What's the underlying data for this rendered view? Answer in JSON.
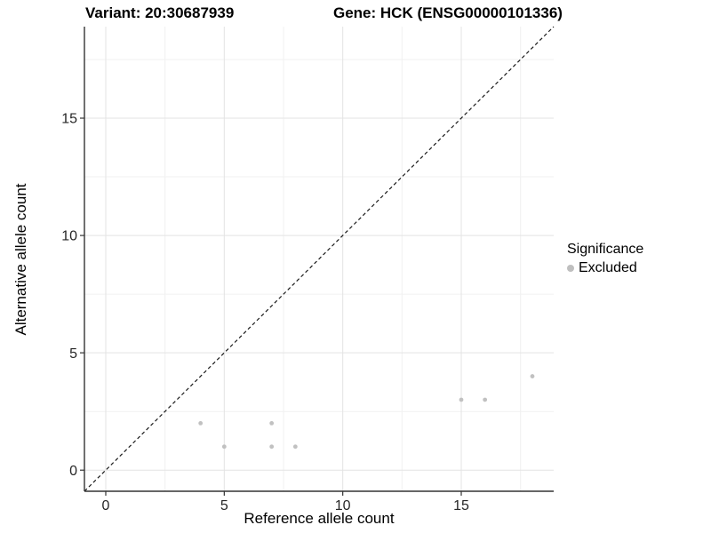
{
  "header": {
    "variant_title": "Variant: 20:30687939",
    "gene_title": "Gene: HCK (ENSG00000101336)"
  },
  "legend": {
    "title": "Significance",
    "items": [
      {
        "label": "Excluded",
        "marker_color": "#bfbfbf"
      }
    ]
  },
  "colors": {
    "point": "#c1c1c1",
    "grid_major": "#e3e3e3",
    "grid_minor": "#f1f1f1",
    "axis_line": "#333333",
    "tick_mark": "#333333",
    "tick_text": "#262626",
    "reference_line": "#1a1a1a",
    "background": "#ffffff"
  },
  "chart_data": {
    "type": "scatter",
    "title": "Variant: 20:30687939   Gene: HCK (ENSG00000101336)",
    "xlabel": "Reference allele count",
    "ylabel": "Alternative allele count",
    "xlim": [
      -0.9,
      18.9
    ],
    "ylim": [
      -0.9,
      18.9
    ],
    "xticks": [
      0,
      5,
      10,
      15
    ],
    "yticks": [
      0,
      5,
      10,
      15
    ],
    "minor_gridlines": [
      2.5,
      7.5,
      12.5,
      17.5
    ],
    "grid": true,
    "legend_position": "right",
    "reference_line": {
      "type": "diagonal",
      "slope": 1,
      "intercept": 0,
      "style": "dashed"
    },
    "series": [
      {
        "name": "Excluded",
        "points": [
          {
            "x": 4,
            "y": 2
          },
          {
            "x": 5,
            "y": 1
          },
          {
            "x": 7,
            "y": 1
          },
          {
            "x": 7,
            "y": 2
          },
          {
            "x": 8,
            "y": 1
          },
          {
            "x": 15,
            "y": 3
          },
          {
            "x": 16,
            "y": 3
          },
          {
            "x": 18,
            "y": 4
          }
        ]
      }
    ]
  }
}
